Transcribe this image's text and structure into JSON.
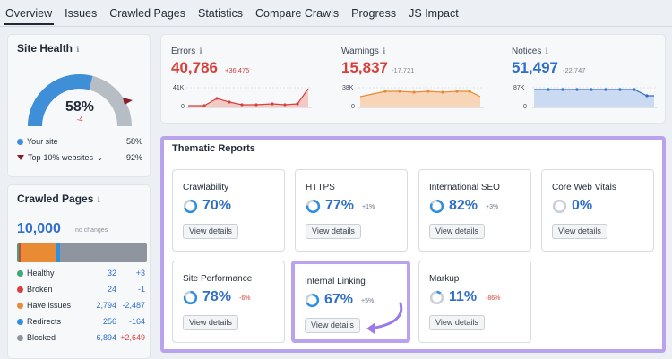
{
  "tabs": [
    "Overview",
    "Issues",
    "Crawled Pages",
    "Statistics",
    "Compare Crawls",
    "Progress",
    "JS Impact"
  ],
  "site_health": {
    "title": "Site Health",
    "percent": "58%",
    "delta": "-4",
    "value_fraction": 0.58,
    "your_site_label": "Your site",
    "your_site_value": "58%",
    "top10_label": "Top-10% websites",
    "top10_value": "92%",
    "colors": {
      "your_site": "#3f8ed8",
      "top10": "#8b1e2d",
      "gauge_track": "#b7bdc5"
    }
  },
  "crawled_pages": {
    "title": "Crawled Pages",
    "count": "10,000",
    "no_changes": "no changes",
    "rows": [
      {
        "label": "Healthy",
        "value": "32",
        "delta": "+3",
        "color": "#3fa77a",
        "delta_color": "#2f6fc9"
      },
      {
        "label": "Broken",
        "value": "24",
        "delta": "-1",
        "color": "#d5423d",
        "delta_color": "#2f6fc9"
      },
      {
        "label": "Have issues",
        "value": "2,794",
        "delta": "-2,487",
        "color": "#e98a34",
        "delta_color": "#2f6fc9"
      },
      {
        "label": "Redirects",
        "value": "256",
        "delta": "-164",
        "color": "#2f8fe0",
        "delta_color": "#2f6fc9"
      },
      {
        "label": "Blocked",
        "value": "6,894",
        "delta": "+2,649",
        "color": "#8e959e",
        "delta_color": "#d5423d"
      }
    ]
  },
  "metrics": {
    "errors": {
      "label": "Errors",
      "value": "40,786",
      "delta": "+36,475",
      "max": "41K",
      "zero": "0",
      "color": "#d5423d",
      "delta_color": "#d5423d"
    },
    "warnings": {
      "label": "Warnings",
      "value": "15,837",
      "delta": "-17,721",
      "max": "38K",
      "zero": "0",
      "color": "#e98a34",
      "delta_color": "#7d8692"
    },
    "notices": {
      "label": "Notices",
      "value": "51,497",
      "delta": "-22,747",
      "max": "87K",
      "zero": "0",
      "color": "#2f6fc9",
      "delta_color": "#7d8692"
    }
  },
  "thematic": {
    "title": "Thematic Reports",
    "view_details": "View details",
    "reports": [
      {
        "name": "Crawlability",
        "value": "70%",
        "delta": "",
        "fraction": 0.7
      },
      {
        "name": "HTTPS",
        "value": "77%",
        "delta": "+1%",
        "fraction": 0.77
      },
      {
        "name": "International SEO",
        "value": "82%",
        "delta": "+3%",
        "fraction": 0.82
      },
      {
        "name": "Core Web Vitals",
        "value": "0%",
        "delta": "",
        "fraction": 0.0
      },
      {
        "name": "Site Performance",
        "value": "78%",
        "delta": "-6%",
        "fraction": 0.78
      },
      {
        "name": "Internal Linking",
        "value": "67%",
        "delta": "+5%",
        "fraction": 0.67
      },
      {
        "name": "Markup",
        "value": "11%",
        "delta": "-86%",
        "fraction": 0.11
      }
    ],
    "colors": {
      "ring": "#2f8fe0",
      "track": "#c9cfd6",
      "highlight": "#b9a2ee",
      "arrow": "#9b79e8"
    }
  }
}
